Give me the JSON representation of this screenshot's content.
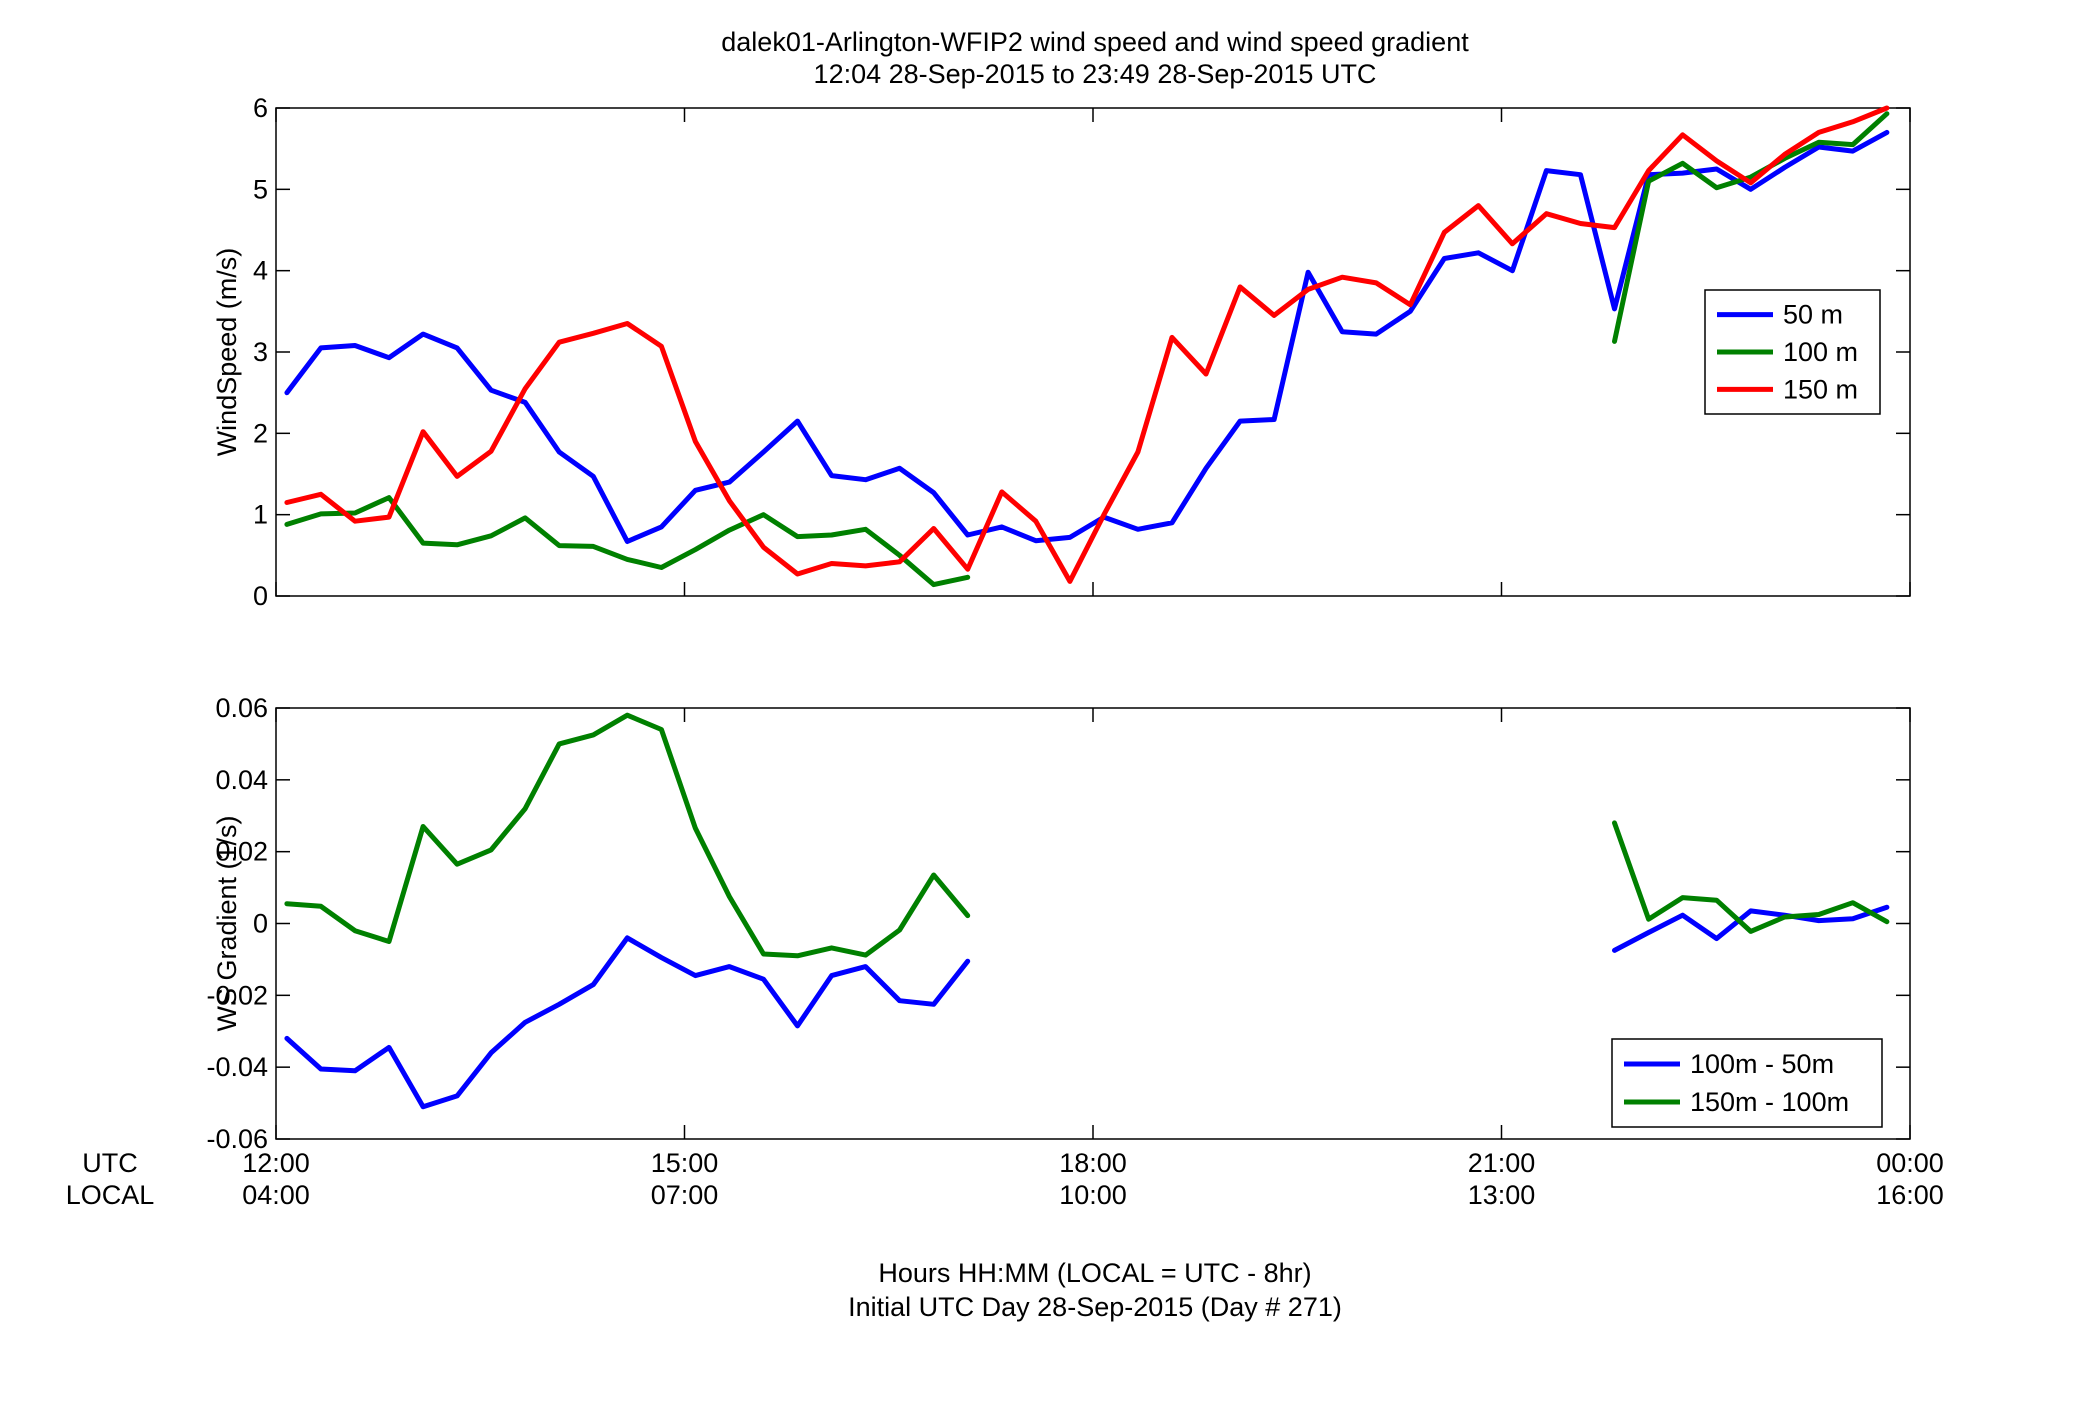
{
  "figure": {
    "title_line1": "dalek01-Arlington-WFIP2  wind speed and wind speed gradient",
    "title_line2": "12:04 28-Sep-2015 to 23:49 28-Sep-2015  UTC",
    "xlabel_line1": "Hours HH:MM  (LOCAL = UTC - 8hr)",
    "xlabel_line2": "Initial UTC Day 28-Sep-2015 (Day # 271)",
    "row_label_utc": "UTC",
    "row_label_local": "LOCAL",
    "utc_ticks": [
      "12:00",
      "15:00",
      "18:00",
      "21:00",
      "00:00"
    ],
    "local_ticks": [
      "04:00",
      "07:00",
      "10:00",
      "13:00",
      "16:00"
    ]
  },
  "chart_data": [
    {
      "type": "line",
      "ylabel": "WindSpeed (m/s)",
      "xlim": [
        12,
        24
      ],
      "ylim": [
        0,
        6
      ],
      "yticks": [
        "0",
        "1",
        "2",
        "3",
        "4",
        "5",
        "6"
      ],
      "ytick_values": [
        0,
        1,
        2,
        3,
        4,
        5,
        6
      ],
      "legend_position": "right",
      "x": [
        12.08,
        12.33,
        12.58,
        12.83,
        13.08,
        13.33,
        13.58,
        13.83,
        14.08,
        14.33,
        14.58,
        14.83,
        15.08,
        15.33,
        15.58,
        15.83,
        16.08,
        16.33,
        16.58,
        16.83,
        17.08,
        17.33,
        17.58,
        17.83,
        18.08,
        18.33,
        18.58,
        18.83,
        19.08,
        19.33,
        19.58,
        19.83,
        20.08,
        20.33,
        20.58,
        20.83,
        21.08,
        21.33,
        21.58,
        21.83,
        22.08,
        22.33,
        22.58,
        22.83,
        23.08,
        23.33,
        23.58,
        23.83
      ],
      "series": [
        {
          "name": "50 m",
          "color": "#0000ff",
          "values": [
            2.5,
            3.05,
            3.08,
            2.93,
            3.22,
            3.05,
            2.53,
            2.38,
            1.77,
            1.47,
            0.67,
            0.85,
            1.3,
            1.4,
            1.77,
            2.15,
            1.48,
            1.43,
            1.57,
            1.27,
            0.75,
            0.85,
            0.68,
            0.72,
            0.97,
            0.82,
            0.9,
            1.57,
            2.15,
            2.17,
            3.98,
            3.25,
            3.22,
            3.5,
            4.15,
            4.22,
            4.0,
            5.23,
            5.18,
            3.53,
            5.18,
            5.2,
            5.25,
            5.0,
            5.27,
            5.52,
            5.47,
            5.7
          ]
        },
        {
          "name": "100 m",
          "color": "#008000",
          "values": [
            0.88,
            1.01,
            1.02,
            1.21,
            0.65,
            0.63,
            0.74,
            0.96,
            0.62,
            0.61,
            0.45,
            0.35,
            0.57,
            0.81,
            1.0,
            0.73,
            0.75,
            0.82,
            0.5,
            0.14,
            0.23,
            null,
            null,
            null,
            null,
            null,
            null,
            null,
            null,
            null,
            null,
            null,
            null,
            null,
            null,
            null,
            null,
            null,
            null,
            3.13,
            5.1,
            5.32,
            5.02,
            5.15,
            5.38,
            5.58,
            5.55,
            5.93
          ]
        },
        {
          "name": "150 m",
          "color": "#ff0000",
          "values": [
            1.15,
            1.25,
            0.92,
            0.97,
            2.02,
            1.47,
            1.78,
            2.55,
            3.12,
            3.23,
            3.35,
            3.07,
            1.9,
            1.17,
            0.6,
            0.27,
            0.4,
            0.37,
            0.42,
            0.83,
            0.33,
            1.28,
            0.92,
            0.18,
            1.0,
            1.77,
            3.18,
            2.73,
            3.8,
            3.45,
            3.77,
            3.92,
            3.85,
            3.58,
            4.47,
            4.8,
            4.33,
            4.7,
            4.58,
            4.53,
            5.23,
            5.67,
            5.35,
            5.08,
            5.43,
            5.7,
            5.83,
            6.0
          ]
        }
      ]
    },
    {
      "type": "line",
      "ylabel": "WS Gradient (1/s)",
      "xlim": [
        12,
        24
      ],
      "ylim": [
        -0.06,
        0.06
      ],
      "yticks": [
        "-0.06",
        "-0.04",
        "-0.02",
        "0",
        "0.02",
        "0.04",
        "0.06"
      ],
      "ytick_values": [
        -0.06,
        -0.04,
        -0.02,
        0,
        0.02,
        0.04,
        0.06
      ],
      "legend_position": "bottom-right",
      "x": [
        12.08,
        12.33,
        12.58,
        12.83,
        13.08,
        13.33,
        13.58,
        13.83,
        14.08,
        14.33,
        14.58,
        14.83,
        15.08,
        15.33,
        15.58,
        15.83,
        16.08,
        16.33,
        16.58,
        16.83,
        17.08,
        17.33,
        17.58,
        17.83,
        18.08,
        18.33,
        18.58,
        18.83,
        19.08,
        19.33,
        19.58,
        19.83,
        20.08,
        20.33,
        20.58,
        20.83,
        21.08,
        21.33,
        21.58,
        21.83,
        22.08,
        22.33,
        22.58,
        22.83,
        23.08,
        23.33,
        23.58,
        23.83
      ],
      "series": [
        {
          "name": "100m - 50m",
          "color": "#0000ff",
          "values": [
            -0.032,
            -0.0405,
            -0.041,
            -0.0345,
            -0.051,
            -0.048,
            -0.036,
            -0.0275,
            -0.0225,
            -0.017,
            -0.004,
            -0.0095,
            -0.0145,
            -0.012,
            -0.0155,
            -0.0285,
            -0.0145,
            -0.012,
            -0.0215,
            -0.0225,
            -0.0105,
            null,
            null,
            null,
            null,
            null,
            null,
            null,
            null,
            null,
            null,
            null,
            null,
            null,
            null,
            null,
            null,
            null,
            null,
            -0.0075,
            -0.0025,
            0.0023,
            -0.0042,
            0.0035,
            0.0023,
            0.0008,
            0.0013,
            0.0045
          ]
        },
        {
          "name": "150m - 100m",
          "color": "#008000",
          "values": [
            0.0055,
            0.0048,
            -0.002,
            -0.005,
            0.027,
            0.0165,
            0.0205,
            0.032,
            0.05,
            0.0525,
            0.058,
            0.054,
            0.0265,
            0.0075,
            -0.0085,
            -0.009,
            -0.0068,
            -0.0088,
            -0.0018,
            0.0135,
            0.0022,
            null,
            null,
            null,
            null,
            null,
            null,
            null,
            null,
            null,
            null,
            null,
            null,
            null,
            null,
            null,
            null,
            null,
            null,
            0.028,
            0.0012,
            0.0072,
            0.0065,
            -0.0022,
            0.0018,
            0.0025,
            0.0058,
            0.0005
          ]
        }
      ]
    }
  ]
}
